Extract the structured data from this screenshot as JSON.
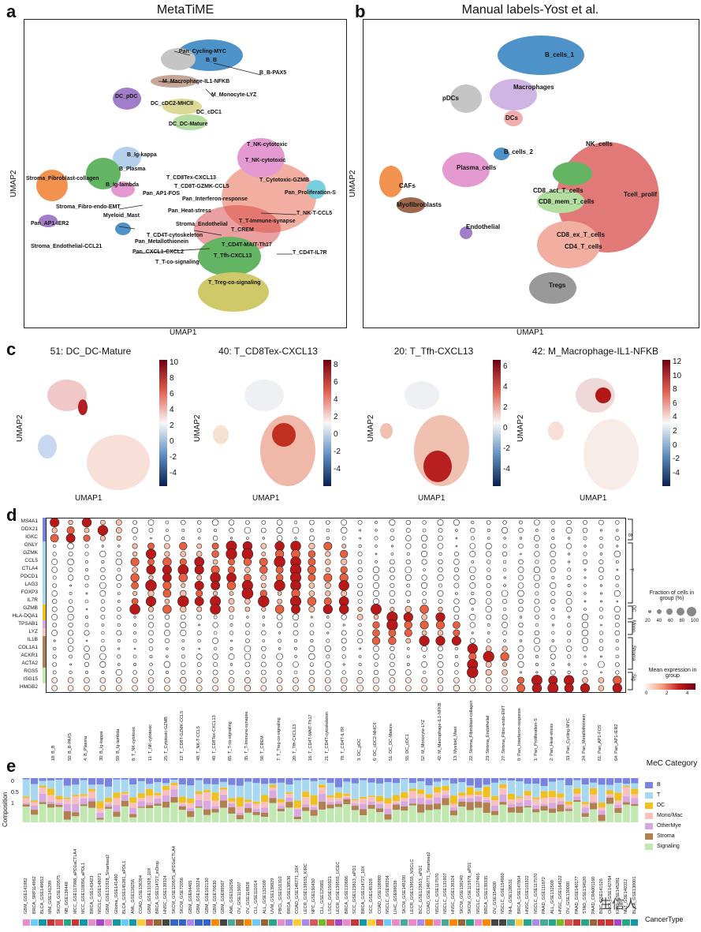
{
  "panel_a": {
    "letter": "a",
    "title": "MetaTiME",
    "xlabel": "UMAP1",
    "ylabel": "UMAP2",
    "labels": [
      "Pan_Cycling-MYC",
      "B_B",
      "B_B-PAX5",
      "M_Macrophage-IL1-NFKB",
      "M_Monocyte-LYZ",
      "DC_pDC",
      "DC_cDC2-MHCII",
      "DC_cDC1",
      "DC_DC-Mature",
      "T_NK-cytotoxic",
      "T_NK-cytotoxic",
      "B_Ig-kappa",
      "B_Plasma",
      "B_Ig-lambda",
      "Stroma_Fibroblast-collagen",
      "T_CD8Tex-CXCL13",
      "T_CD8T-GZMK-CCL5",
      "T_Cytotoxic-GZMB",
      "Pan_AP1-FOS",
      "Pan_Interferon-response",
      "Pan_Proliferation-S",
      "Stroma_Fibro-endo-EMT",
      "Pan_Heat-stress",
      "T_NK-T-CCL5",
      "Myeloid_Mast",
      "T_T-Immune-synapse",
      "Pan_AP1-IER2",
      "Stroma_Endothelial",
      "T_CREM",
      "T_CD4T-cytoskeleton",
      "Pan_Metallothionein",
      "Stroma_Endothelial-CCL21",
      "T_CD4T-MAIT-Th17",
      "Pan_CXCL1-CXCL2",
      "T_CD4T-IL7R",
      "T_Tfh-CXCL13",
      "T_T-co-signaling",
      "T_Treg-co-signaling"
    ]
  },
  "panel_b": {
    "letter": "b",
    "title": "Manual labels-Yost et al.",
    "xlabel": "UMAP1",
    "ylabel": "UMAP2",
    "labels": [
      "B_cells_1",
      "Macrophages",
      "pDCs",
      "DCs",
      "B_cells_2",
      "NK_cells",
      "Plasma_cells",
      "CAFs",
      "CD8_act_T_cells",
      "Tcell_prolif",
      "CD8_mem_T_cells",
      "Myofibroblasts",
      "Endothelial",
      "CD8_ex_T_cells",
      "CD4_T_cells",
      "Tregs"
    ]
  },
  "panel_c": {
    "letter": "c",
    "xlabel": "UMAP1",
    "ylabel": "UMAP2",
    "plots": [
      {
        "title": "51: DC_DC-Mature",
        "ticks": [
          "10",
          "8",
          "6",
          "4",
          "2",
          "0",
          "-2",
          "-4"
        ]
      },
      {
        "title": "40: T_CD8Tex-CXCL13",
        "ticks": [
          "8",
          "6",
          "4",
          "2",
          "0",
          "-2",
          "-4"
        ]
      },
      {
        "title": "20: T_Tfh-CXCL13",
        "ticks": [
          "6",
          "4",
          "2",
          "0",
          "-2",
          "-4"
        ]
      },
      {
        "title": "42: M_Macrophage-IL1-NFKB",
        "ticks": [
          "12",
          "10",
          "8",
          "6",
          "4",
          "2",
          "0",
          "-2",
          "-4"
        ]
      }
    ]
  },
  "panel_d": {
    "letter": "d",
    "genes": [
      "MS4A1",
      "DDX21",
      "IGKC",
      "GNLY",
      "GZMK",
      "CCL5",
      "CTLA4",
      "PDCD1",
      "LAG3",
      "FOXP3",
      "IL7R",
      "GZMB",
      "HLA-DQA1",
      "TPSAB1",
      "LYZ",
      "IL1B",
      "COL1A1",
      "ACKR1",
      "ACTA2",
      "RGS5",
      "ISG15",
      "HMGB2"
    ],
    "groups": [
      "B",
      "T",
      "DC",
      "Mono.",
      "Stroma",
      "Sig."
    ],
    "columns": [
      "18: B_B",
      "50: B_B-PAX5",
      "4: B_Plasma",
      "30: B_Ig-kappa",
      "59: B_Ig-lambda",
      "8: T_NK-cytotoxic",
      "11: T_NK-cytotoxic",
      "25: T_Cytotoxic-GZMB",
      "12: T_CD8T-GZMK-CCL5",
      "48: T_NK-T-CCL5",
      "40: T_CD8Tex-CXCL13",
      "65: T_T-co-signaling",
      "35: T_T-Immune-synapse",
      "56: T_CREM",
      "7: T_Treg-co-signaling",
      "20: T_Tfh-CXCL13",
      "16: T_CD4T-MAIT-Th17",
      "21: T_CD4T-cytoskeleton",
      "78: T_CD4T-IL7R",
      "3: DC_pDC",
      "6: DC_cDC2-MHCII",
      "51: DC_DC-Mature",
      "55: DC_cDC1",
      "52: M_Monocyte-LYZ",
      "42: M_Macrophage-IL1-NFKB",
      "13: Myeloid_Mast",
      "22: Stroma_Fibroblast-collagen",
      "23: Stroma_Endothelial",
      "27: Stroma_Fibro-endo-EMT",
      "0: Pan_Interferon-response",
      "1: Pan_Proliferation-S",
      "2: Pan_Heat-stress",
      "33: Pan_Cycling-MYC",
      "24: Pan_Metallothionein",
      "61: Pan_AP1-FOS",
      "64: Pan_AP1-IER2"
    ],
    "size_legend_title": "Fraction of cells in group (%)",
    "size_ticks": [
      "20",
      "40",
      "60",
      "80",
      "100"
    ],
    "color_legend_title": "Mean expression in group",
    "color_ticks": [
      "0",
      "2",
      "4"
    ]
  },
  "panel_e": {
    "letter": "e",
    "ylabel": "Composition",
    "yticks": [
      "0",
      "0.5",
      "1"
    ],
    "legend_title": "MeC Category",
    "categories": [
      {
        "name": "B",
        "color": "#7b83e0"
      },
      {
        "name": "T",
        "color": "#a8d8f0"
      },
      {
        "name": "DC",
        "color": "#f0c020"
      },
      {
        "name": "Mono/Mac",
        "color": "#f8c0c0"
      },
      {
        "name": "OtherMye",
        "color": "#d8a8e0"
      },
      {
        "name": "Stroma",
        "color": "#b08050"
      },
      {
        "name": "Signaling",
        "color": "#c0e8b0"
      }
    ],
    "datasets": [
      "GBM_GSE141982",
      "BRCA_SRP114962",
      "BLCA_GSE149652",
      "MM_GSE141299",
      "SKCM_GSE120575",
      "NB_GSE139448",
      "MCC_GSE117988_aPD1aCTLA4",
      "MCC_GSE118056_aPDL1",
      "BRCA_GSE143423",
      "NSCLC_GSE148071",
      "GBM_GSE131928_Smartseq2",
      "Glioma_GSE141460",
      "BLCA_GSE145281_aPDL1",
      "AML_GSE116256",
      "COAD_GSE136394",
      "GBM_GSE131928_10X",
      "BRCA_GSE114727_inDrop",
      "HNSC_GSE139324",
      "SKCM_GSE120575_aPD1aCTLA4",
      "SKCM_GSE72056",
      "GBM_GSE84465",
      "GBM_GSE103224",
      "GBM_GSE102130",
      "GBM_GSE70630",
      "GBM_GSE89567",
      "AML_GSE116256",
      "OV_GSE115007",
      "OV_GSE118828",
      "CLL_GSE111014",
      "ALL_GSE132509",
      "UVM_GSE139829",
      "PBCL_GSE151310",
      "BRCA_GSE138536",
      "COAD_GSE146771_10X",
      "LECR_GSE139555_KIRC",
      "NPC_GSE150430",
      "CLL_GSE125881",
      "LSCC_GSE150321",
      "LECR_GSE139555_UCEC",
      "BRCA_GSE110686",
      "SCC_GSE123813_aPD1",
      "BRCA_GSE114727_10X",
      "SCC_GSE145328",
      "COAD_GSE108989",
      "NSCLC_GSE99254",
      "LIHC_GSE98638",
      "SKCM_GSE148190",
      "LECR_GSE139555_NSCLC",
      "BCC_GSE123813_aPD1",
      "COAD_GSE146771_Smartseq2",
      "NSCLC_GSE117570",
      "NSCLC_GSE131907",
      "HNSC_GSE139324",
      "SKCM_GSE139249",
      "SKCM_GSE115978_aPD1",
      "NSCLC_GSE127465",
      "BRCA_GSE139335",
      "OV_GSE154600",
      "NSCLC_GSE154660",
      "NHL_GSE128531",
      "BRCA_GSE147804",
      "HNSC_GSE103322",
      "NSCLC_GSE117570",
      "PAAD_GSE111672",
      "ALL_GSE132509",
      "HNSC_GSE164522",
      "OV_GSE130000",
      "PAAD_GSE140177",
      "STAD_GSE134520",
      "PAAD_CRA001160",
      "BCC_GSE141526",
      "CHOL_GSE142784",
      "KIRC_GSE145281",
      "NET_GSE140312",
      "BLCA_GSE130001"
    ],
    "cancer_type_label": "CancerType",
    "watermark": "生信人"
  },
  "colors": {
    "blue": "#2f7fc0",
    "orange": "#f08030",
    "green": "#48a848",
    "red": "#d02020",
    "purple": "#9068c0",
    "pink": "#e088c8",
    "grey": "#888888",
    "olive": "#c8c050",
    "cyan": "#60c8d8",
    "brown": "#905030",
    "ltgreen": "#a8d890",
    "salmon": "#f0a090",
    "ltblue": "#a8c8e8"
  }
}
